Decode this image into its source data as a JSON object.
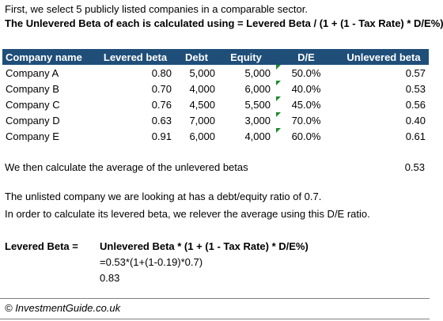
{
  "intro": {
    "line1": "First, we select 5 publicly listed companies in a comparable sector.",
    "line2": "The Unlevered Beta of each is calculated using = Levered Beta / (1 + (1 - Tax Rate) * D/E%)"
  },
  "table": {
    "headers": [
      "Company name",
      "Levered beta",
      "Debt",
      "Equity",
      "D/E",
      "Unlevered beta"
    ],
    "rows": [
      [
        "Company A",
        "0.80",
        "5,000",
        "5,000",
        "50.0%",
        "0.57"
      ],
      [
        "Company B",
        "0.70",
        "4,000",
        "6,000",
        "40.0%",
        "0.53"
      ],
      [
        "Company C",
        "0.76",
        "4,500",
        "5,500",
        "45.0%",
        "0.56"
      ],
      [
        "Company D",
        "0.63",
        "7,000",
        "3,000",
        "70.0%",
        "0.40"
      ],
      [
        "Company E",
        "0.91",
        "6,000",
        "4,000",
        "60.0%",
        "0.61"
      ]
    ],
    "header_bg": "#1f4e79",
    "marker_color": "#1e8a2e"
  },
  "average": {
    "label": "We then calculate the average of the unlevered betas",
    "value": "0.53"
  },
  "unlisted": {
    "line1": "The unlisted company we are looking at has a debt/equity ratio of 0.7.",
    "line2": "In order to calculate its levered beta, we relever the average using this D/E ratio."
  },
  "levered": {
    "label": "Levered Beta =",
    "formula": "Unlevered Beta * (1 + (1 - Tax Rate) * D/E%)",
    "calculation": "=0.53*(1+(1-0.19)*0.7)",
    "result": "0.83"
  },
  "footer": {
    "text": "© InvestmentGuide.co.uk"
  }
}
